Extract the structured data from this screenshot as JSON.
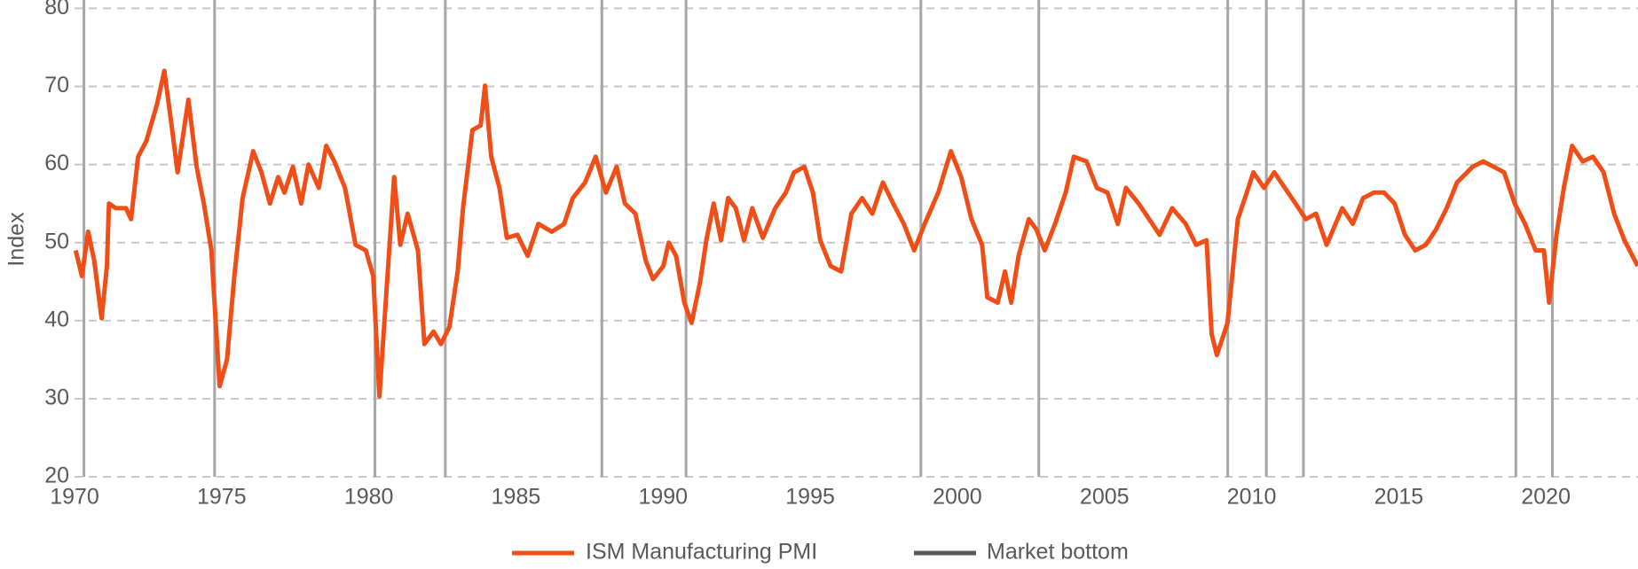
{
  "chart_data": {
    "type": "line",
    "ylabel": "Index",
    "xlim": [
      1970,
      2023.13
    ],
    "xticks": [
      1970,
      1975,
      1980,
      1985,
      1990,
      1995,
      2000,
      2005,
      2010,
      2015,
      2020
    ],
    "ylim": [
      20,
      80
    ],
    "yticks": [
      20,
      30,
      40,
      50,
      60,
      70,
      80
    ],
    "grid": true,
    "series": [
      {
        "name": "ISM Manufacturing PMI",
        "color": "#f04e16",
        "x": [
          1970.04,
          1970.25,
          1970.46,
          1970.67,
          1970.92,
          1971.1,
          1971.17,
          1971.4,
          1971.75,
          1971.92,
          1972.16,
          1972.44,
          1972.8,
          1973.05,
          1973.3,
          1973.5,
          1973.87,
          1974.15,
          1974.4,
          1974.65,
          1974.93,
          1975.18,
          1975.43,
          1975.71,
          1976.07,
          1976.35,
          1976.64,
          1976.92,
          1977.13,
          1977.42,
          1977.7,
          1977.95,
          1978.3,
          1978.55,
          1978.83,
          1979.19,
          1979.55,
          1979.9,
          1980.15,
          1980.36,
          1980.6,
          1980.86,
          1981.07,
          1981.32,
          1981.67,
          1981.89,
          1982.2,
          1982.45,
          1982.74,
          1983.02,
          1983.2,
          1983.52,
          1983.8,
          1983.95,
          1984.16,
          1984.44,
          1984.69,
          1985.05,
          1985.4,
          1985.76,
          1986.22,
          1986.64,
          1986.93,
          1987.35,
          1987.71,
          1988.06,
          1988.42,
          1988.7,
          1989.06,
          1989.41,
          1989.66,
          1990.01,
          1990.19,
          1990.44,
          1990.72,
          1990.97,
          1991.26,
          1991.47,
          1991.72,
          1991.97,
          1992.21,
          1992.47,
          1992.75,
          1993.03,
          1993.39,
          1993.81,
          1994.17,
          1994.45,
          1994.8,
          1995.09,
          1995.34,
          1995.69,
          1996.05,
          1996.4,
          1996.76,
          1997.11,
          1997.47,
          1997.82,
          1998.18,
          1998.53,
          1998.89,
          1999.35,
          1999.78,
          2000.13,
          2000.48,
          2000.84,
          2001.02,
          2001.37,
          2001.62,
          2001.83,
          2002.08,
          2002.43,
          2002.68,
          2002.97,
          2003.32,
          2003.68,
          2003.96,
          2004.39,
          2004.74,
          2005.1,
          2005.45,
          2005.73,
          2006.16,
          2006.52,
          2006.87,
          2007.3,
          2007.76,
          2008.11,
          2008.47,
          2008.64,
          2008.82,
          2009.18,
          2009.53,
          2009.89,
          2010.06,
          2010.42,
          2010.77,
          2011.13,
          2011.49,
          2011.84,
          2012.19,
          2012.55,
          2013.08,
          2013.44,
          2013.79,
          2014.15,
          2014.5,
          2014.86,
          2015.21,
          2015.56,
          2015.92,
          2016.27,
          2016.63,
          2016.98,
          2017.51,
          2017.87,
          2018.23,
          2018.58,
          2018.94,
          2019.29,
          2019.65,
          2019.93,
          2020.11,
          2020.36,
          2020.61,
          2020.89,
          2021.25,
          2021.6,
          2021.96,
          2022.32,
          2022.67,
          2023.12
        ],
        "values": [
          49,
          45.7,
          51.4,
          47.7,
          40.3,
          47,
          55,
          54.4,
          54.4,
          53,
          61,
          63,
          67.7,
          72,
          65,
          59,
          68.3,
          59.7,
          54.9,
          49,
          31.6,
          35,
          45.7,
          55.7,
          61.7,
          59,
          55,
          58.4,
          56.4,
          59.7,
          55,
          60,
          57,
          62.4,
          60.4,
          57,
          49.7,
          49,
          45.7,
          30.3,
          43.7,
          58.4,
          49.7,
          53.7,
          49,
          37,
          38.6,
          37,
          39.2,
          46.3,
          54.4,
          64.4,
          65,
          70.1,
          61,
          57,
          50.6,
          51,
          48.3,
          52.4,
          51.4,
          52.4,
          55.7,
          57.7,
          61,
          56.4,
          59.7,
          55,
          53.7,
          47.7,
          45.3,
          47,
          50,
          48.3,
          42.3,
          39.7,
          45,
          50.3,
          55,
          50.3,
          55.7,
          54.4,
          50.3,
          54.4,
          50.6,
          54.4,
          56.4,
          59,
          59.7,
          56.4,
          50.3,
          47,
          46.3,
          53.7,
          55.7,
          53.7,
          57.7,
          55,
          52.4,
          49,
          52.4,
          56.4,
          61.7,
          58.4,
          53,
          49.7,
          43,
          42.3,
          46.3,
          42.3,
          48.3,
          53,
          51.7,
          49,
          52.4,
          56.4,
          61,
          60.4,
          57,
          56.4,
          52.4,
          57,
          55,
          53,
          51,
          54.4,
          52.4,
          49.7,
          50.3,
          38.3,
          35.6,
          39.7,
          53,
          57,
          59,
          57,
          59,
          57,
          55,
          53,
          53.7,
          49.7,
          54.4,
          52.4,
          55.7,
          56.4,
          56.4,
          55,
          51,
          49,
          49.7,
          51.7,
          54.4,
          57.7,
          59.7,
          60.4,
          59.7,
          59,
          55,
          52.4,
          49,
          49,
          42.3,
          51,
          57,
          62.4,
          60.4,
          61,
          59,
          53.7,
          50.3,
          47
        ]
      }
    ],
    "market_bottoms": {
      "name": "Market bottom",
      "color": "#a6a6a6",
      "x": [
        1970.32,
        1974.76,
        1980.21,
        1982.6,
        1987.92,
        1990.78,
        1998.76,
        2002.77,
        2009.19,
        2010.5,
        2011.76,
        2018.98,
        2020.22
      ]
    }
  }
}
